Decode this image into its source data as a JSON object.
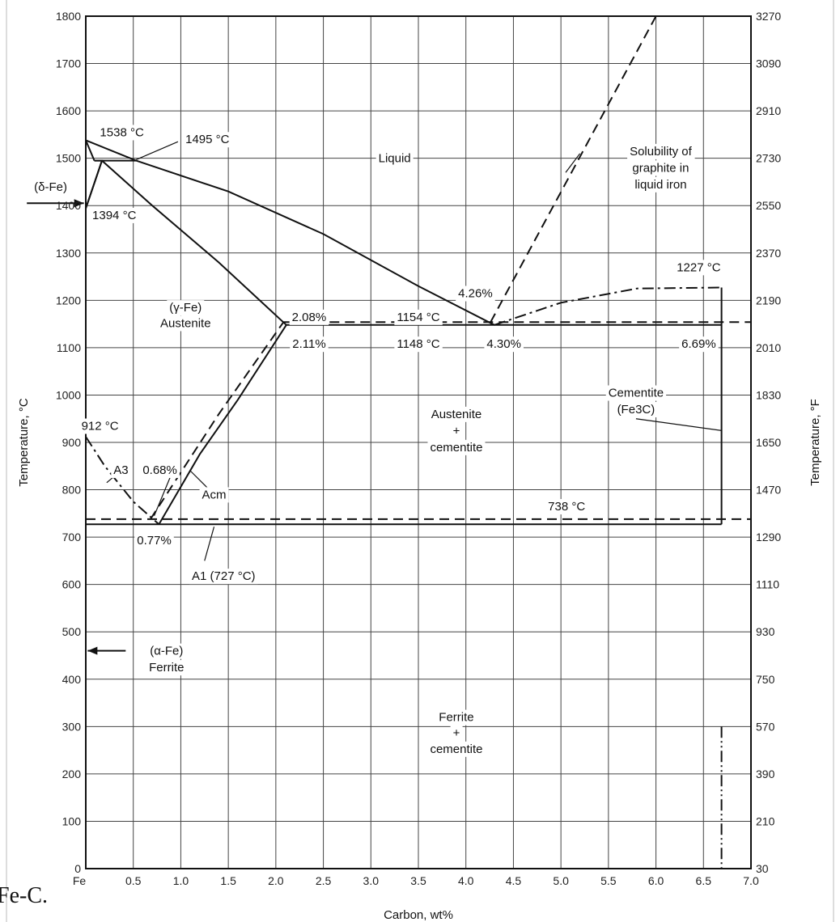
{
  "chart_data": {
    "type": "line",
    "title": "",
    "xlabel": "Carbon, wt%",
    "ylabel": "Temperature, °C",
    "ylabel_right": "Temperature, °F",
    "xlim": [
      0,
      7.0
    ],
    "ylim": [
      0,
      1800
    ],
    "grid": true,
    "x_ticks": [
      {
        "v": 0,
        "label": "Fe"
      },
      {
        "v": 0.5,
        "label": "0.5"
      },
      {
        "v": 1.0,
        "label": "1.0"
      },
      {
        "v": 1.5,
        "label": "1.5"
      },
      {
        "v": 2.0,
        "label": "2.0"
      },
      {
        "v": 2.5,
        "label": "2.5"
      },
      {
        "v": 3.0,
        "label": "3.0"
      },
      {
        "v": 3.5,
        "label": "3.5"
      },
      {
        "v": 4.0,
        "label": "4.0"
      },
      {
        "v": 4.5,
        "label": "4.5"
      },
      {
        "v": 5.0,
        "label": "5.0"
      },
      {
        "v": 5.5,
        "label": "5.5"
      },
      {
        "v": 6.0,
        "label": "6.0"
      },
      {
        "v": 6.5,
        "label": "6.5"
      },
      {
        "v": 7.0,
        "label": "7.0"
      }
    ],
    "y_ticks": [
      0,
      100,
      200,
      300,
      400,
      500,
      600,
      700,
      800,
      900,
      1000,
      1100,
      1200,
      1300,
      1400,
      1500,
      1600,
      1700,
      1800
    ],
    "y_ticks_right": [
      {
        "v": 0,
        "label": "30"
      },
      {
        "v": 100,
        "label": "210"
      },
      {
        "v": 200,
        "label": "390"
      },
      {
        "v": 300,
        "label": "570"
      },
      {
        "v": 400,
        "label": "750"
      },
      {
        "v": 500,
        "label": "930"
      },
      {
        "v": 600,
        "label": "1110"
      },
      {
        "v": 700,
        "label": "1290"
      },
      {
        "v": 800,
        "label": "1470"
      },
      {
        "v": 900,
        "label": "1650"
      },
      {
        "v": 1000,
        "label": "1830"
      },
      {
        "v": 1100,
        "label": "2010"
      },
      {
        "v": 1200,
        "label": "2190"
      },
      {
        "v": 1300,
        "label": "2370"
      },
      {
        "v": 1400,
        "label": "2550"
      },
      {
        "v": 1500,
        "label": "2730"
      },
      {
        "v": 1600,
        "label": "2910"
      },
      {
        "v": 1700,
        "label": "3090"
      },
      {
        "v": 1800,
        "label": "3270"
      }
    ],
    "series": [
      {
        "id": "liquidus-delta",
        "style": "solid",
        "points": [
          [
            0,
            1538
          ],
          [
            0.53,
            1495
          ]
        ]
      },
      {
        "id": "solidus-delta",
        "style": "solid",
        "points": [
          [
            0,
            1538
          ],
          [
            0.09,
            1495
          ]
        ]
      },
      {
        "id": "peritectic-line",
        "style": "solid",
        "points": [
          [
            0.09,
            1495
          ],
          [
            0.53,
            1495
          ]
        ]
      },
      {
        "id": "delta-gamma-upper",
        "style": "solid",
        "points": [
          [
            0.09,
            1495
          ],
          [
            0.17,
            1495
          ],
          [
            0,
            1394
          ]
        ]
      },
      {
        "id": "delta-gamma-lower",
        "style": "solid",
        "points": [
          [
            0.17,
            1495
          ],
          [
            0,
            1394
          ]
        ]
      },
      {
        "id": "liquidus",
        "style": "solid",
        "points": [
          [
            0.53,
            1495
          ],
          [
            1.5,
            1430
          ],
          [
            2.5,
            1340
          ],
          [
            3.5,
            1230
          ],
          [
            4.3,
            1148
          ]
        ]
      },
      {
        "id": "solidus-gamma",
        "style": "solid",
        "points": [
          [
            0.17,
            1495
          ],
          [
            0.7,
            1400
          ],
          [
            1.4,
            1280
          ],
          [
            2.11,
            1148
          ]
        ]
      },
      {
        "id": "acm-line",
        "style": "solid",
        "points": [
          [
            0.77,
            727
          ],
          [
            1.2,
            875
          ],
          [
            1.6,
            990
          ],
          [
            2.11,
            1148
          ]
        ]
      },
      {
        "id": "acm-graphite",
        "style": "dash",
        "points": [
          [
            0.68,
            738
          ],
          [
            1.4,
            960
          ],
          [
            2.08,
            1154
          ]
        ]
      },
      {
        "id": "eutectic-line",
        "style": "solid",
        "points": [
          [
            2.11,
            1148
          ],
          [
            6.69,
            1148
          ]
        ]
      },
      {
        "id": "eutectic-graphite",
        "style": "dash",
        "points": [
          [
            2.08,
            1154
          ],
          [
            7.0,
            1154
          ]
        ]
      },
      {
        "id": "liquidus-cementite",
        "style": "dashdot",
        "points": [
          [
            4.3,
            1148
          ],
          [
            5.0,
            1195
          ],
          [
            5.8,
            1225
          ],
          [
            6.69,
            1227
          ]
        ]
      },
      {
        "id": "graphite-solubility",
        "style": "dash",
        "points": [
          [
            4.26,
            1154
          ],
          [
            6.0,
            1800
          ]
        ]
      },
      {
        "id": "cementite-line",
        "style": "solid",
        "points": [
          [
            6.69,
            1227
          ],
          [
            6.69,
            727
          ]
        ]
      },
      {
        "id": "cementite-lower",
        "style": "dashdotdot",
        "points": [
          [
            6.69,
            300
          ],
          [
            6.69,
            0
          ]
        ]
      },
      {
        "id": "eutectoid-line",
        "style": "solid",
        "points": [
          [
            0,
            727
          ],
          [
            6.69,
            727
          ]
        ]
      },
      {
        "id": "eutectoid-graphite",
        "style": "dash",
        "points": [
          [
            0,
            738
          ],
          [
            7.0,
            738
          ]
        ]
      },
      {
        "id": "a3-line",
        "style": "dashdot",
        "points": [
          [
            0,
            912
          ],
          [
            0.2,
            850
          ],
          [
            0.5,
            775
          ],
          [
            0.77,
            727
          ]
        ]
      },
      {
        "id": "ferrite-solvus",
        "style": "solid",
        "points": [
          [
            0,
            912
          ],
          [
            0,
            0
          ]
        ]
      }
    ],
    "annotations": [
      {
        "text": "Liquid",
        "x": 3.25,
        "y": 1500
      },
      {
        "text": "Solubility of",
        "x": 6.05,
        "y": 1515
      },
      {
        "text": "graphite in",
        "x": 6.05,
        "y": 1480
      },
      {
        "text": "liquid iron",
        "x": 6.05,
        "y": 1445
      },
      {
        "text": "1538 °C",
        "x": 0.38,
        "y": 1555
      },
      {
        "text": "1495 °C",
        "x": 1.28,
        "y": 1540
      },
      {
        "text": "(δ-Fe)",
        "x": -0.37,
        "y": 1440
      },
      {
        "text": "1394 °C",
        "x": 0.3,
        "y": 1380
      },
      {
        "text": "(γ-Fe)",
        "x": 1.05,
        "y": 1185
      },
      {
        "text": "Austenite",
        "x": 1.05,
        "y": 1152
      },
      {
        "text": "2.08%",
        "x": 2.35,
        "y": 1165
      },
      {
        "text": "2.11%",
        "x": 2.35,
        "y": 1108
      },
      {
        "text": "1154 °C",
        "x": 3.5,
        "y": 1165
      },
      {
        "text": "1148 °C",
        "x": 3.5,
        "y": 1108
      },
      {
        "text": "4.26%",
        "x": 4.1,
        "y": 1215
      },
      {
        "text": "4.30%",
        "x": 4.4,
        "y": 1108
      },
      {
        "text": "1227 °C",
        "x": 6.45,
        "y": 1270
      },
      {
        "text": "6.69%",
        "x": 6.45,
        "y": 1108
      },
      {
        "text": "Austenite",
        "x": 3.9,
        "y": 960
      },
      {
        "text": "+",
        "x": 3.9,
        "y": 925
      },
      {
        "text": "cementite",
        "x": 3.9,
        "y": 890
      },
      {
        "text": "Cementite",
        "x": 5.79,
        "y": 1005
      },
      {
        "text": "(Fe3C)",
        "x": 5.79,
        "y": 970
      },
      {
        "text": "912 °C",
        "x": 0.15,
        "y": 935
      },
      {
        "text": "A3",
        "x": 0.37,
        "y": 842
      },
      {
        "text": "0.68%",
        "x": 0.78,
        "y": 842
      },
      {
        "text": "Acm",
        "x": 1.35,
        "y": 790
      },
      {
        "text": "738 °C",
        "x": 5.06,
        "y": 765
      },
      {
        "text": "0.77%",
        "x": 0.72,
        "y": 693
      },
      {
        "text": "A1 (727 °C)",
        "x": 1.45,
        "y": 618
      },
      {
        "text": "(α-Fe)",
        "x": 0.85,
        "y": 460
      },
      {
        "text": "Ferrite",
        "x": 0.85,
        "y": 425
      },
      {
        "text": "Ferrite",
        "x": 3.9,
        "y": 320
      },
      {
        "text": "+",
        "x": 3.9,
        "y": 287
      },
      {
        "text": "cementite",
        "x": 3.9,
        "y": 253
      }
    ],
    "caption": "Fe-C."
  }
}
